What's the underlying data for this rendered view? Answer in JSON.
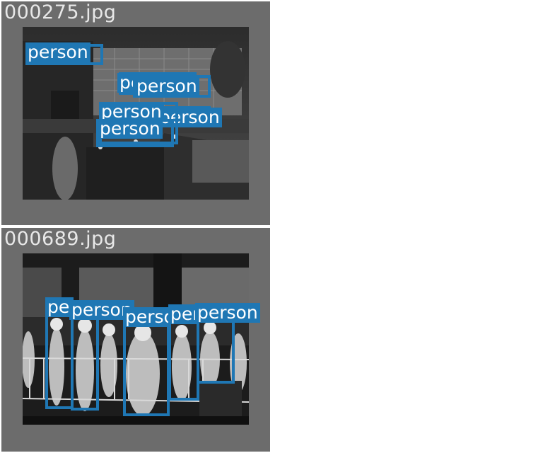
{
  "panels": [
    {
      "filename": "000275.jpg",
      "detections": [
        {
          "label": "person"
        },
        {
          "label": "person"
        },
        {
          "label": "person"
        },
        {
          "label": "person"
        },
        {
          "label": "person"
        },
        {
          "label": "person"
        }
      ]
    },
    {
      "filename": "000689.jpg",
      "detections": [
        {
          "label": "person"
        },
        {
          "label": "person"
        },
        {
          "label": "person"
        },
        {
          "label": "person"
        },
        {
          "label": "person"
        }
      ]
    }
  ],
  "colors": {
    "box": "#1f77b4",
    "panel_bg": "#6c6c6c",
    "filename_text": "#e8e8e8"
  }
}
